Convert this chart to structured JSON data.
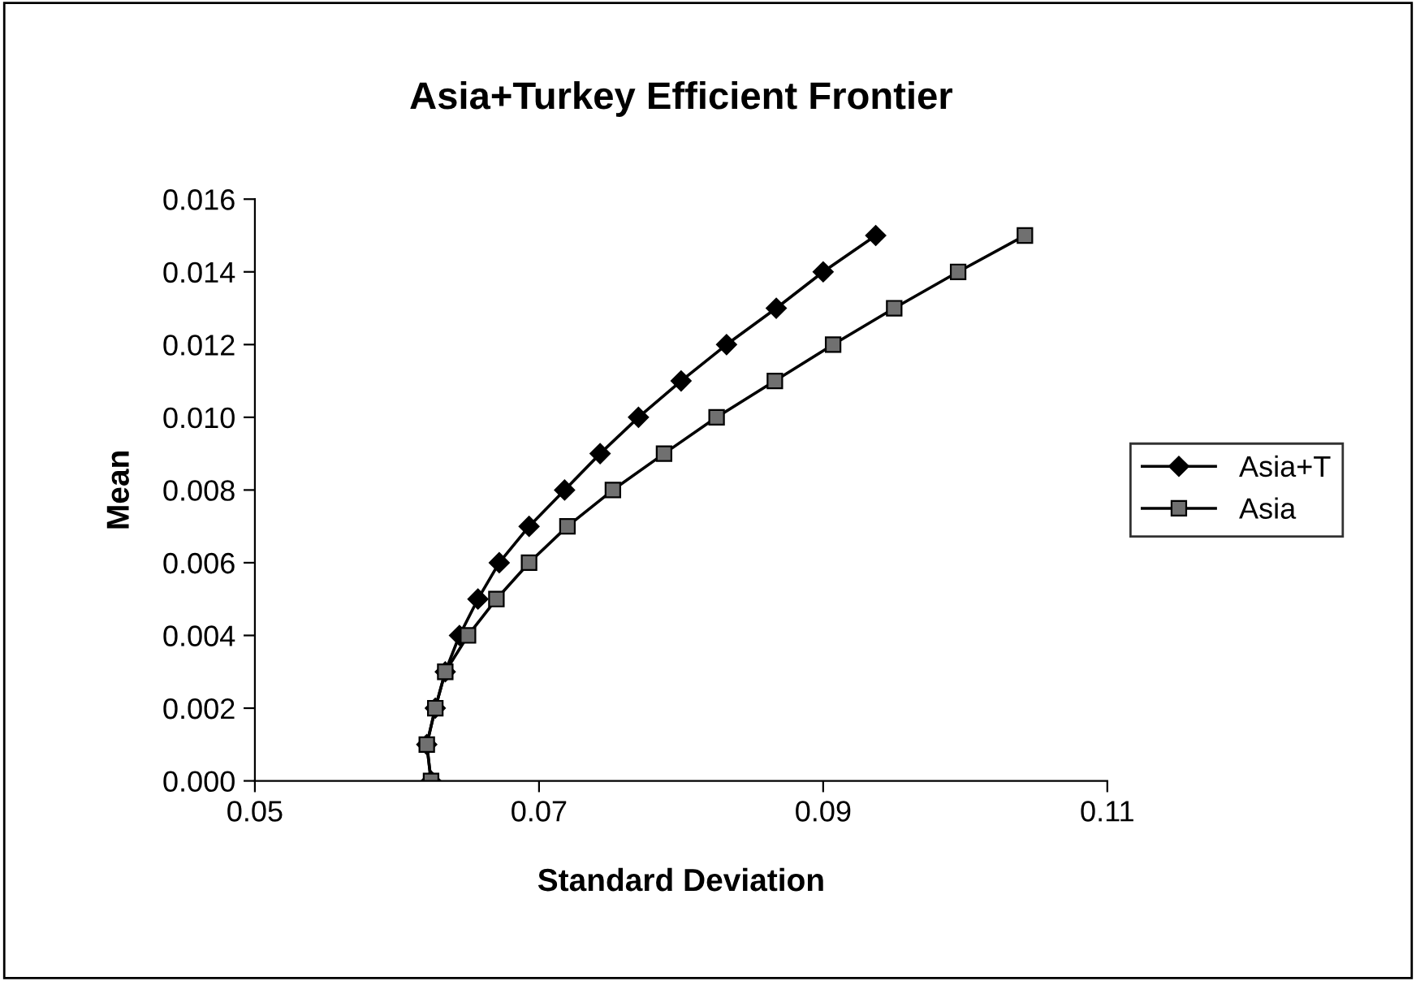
{
  "chart_data": {
    "type": "line",
    "title": "Asia+Turkey Efficient Frontier",
    "xlabel": "Standard Deviation",
    "ylabel": "Mean",
    "series": [
      {
        "name": "Asia+T",
        "color": "#000000",
        "marker": "diamond",
        "x": [
          0.0624,
          0.0621,
          0.0627,
          0.0634,
          0.0644,
          0.0657,
          0.0672,
          0.0693,
          0.0718,
          0.0743,
          0.077,
          0.08,
          0.0832,
          0.0867,
          0.09,
          0.0937
        ],
        "values": [
          0.0,
          0.001,
          0.002,
          0.003,
          0.004,
          0.005,
          0.006,
          0.007,
          0.008,
          0.009,
          0.01,
          0.011,
          0.012,
          0.013,
          0.014,
          0.015
        ]
      },
      {
        "name": "Asia",
        "color": "#707070",
        "marker": "square",
        "x": [
          0.0624,
          0.0621,
          0.0627,
          0.0634,
          0.065,
          0.067,
          0.0693,
          0.072,
          0.0752,
          0.0788,
          0.0825,
          0.0866,
          0.0907,
          0.095,
          0.0995,
          0.1042
        ],
        "values": [
          0.0,
          0.001,
          0.002,
          0.003,
          0.004,
          0.005,
          0.006,
          0.007,
          0.008,
          0.009,
          0.01,
          0.011,
          0.012,
          0.013,
          0.014,
          0.015
        ]
      }
    ],
    "xlim": [
      0.05,
      0.11
    ],
    "xticks": [
      0.05,
      0.07,
      0.09,
      0.11
    ],
    "ylim": [
      0.0,
      0.016
    ],
    "yticks": [
      {
        "value": 0,
        "label": "0.000"
      },
      {
        "value": 0.002,
        "label": "0.002"
      },
      {
        "value": 0.004,
        "label": "0.004"
      },
      {
        "value": 0.006,
        "label": "0.006"
      },
      {
        "value": 0.008,
        "label": "0.008"
      },
      {
        "value": 0.01,
        "label": "0.010"
      },
      {
        "value": 0.012,
        "label": "0.012"
      },
      {
        "value": 0.014,
        "label": "0.014"
      },
      {
        "value": 0.016,
        "label": "0.016"
      }
    ],
    "grid": false,
    "legend": "right",
    "line_style": "solid"
  }
}
